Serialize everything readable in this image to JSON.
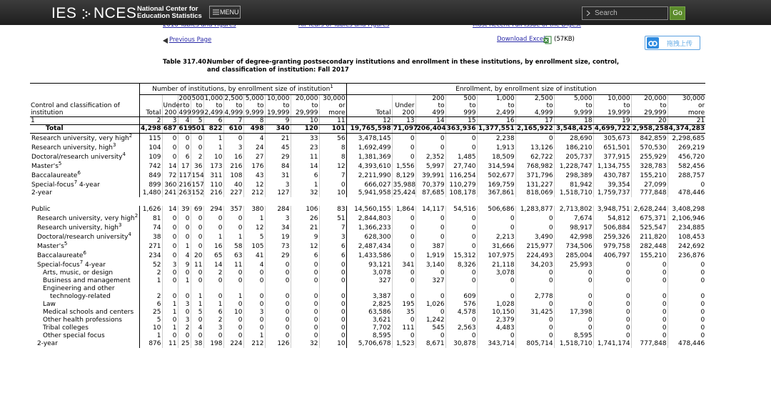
{
  "header": {
    "logo_left": "IES",
    "logo_right": "NCES",
    "org_line1": "National Center for",
    "org_line2": "Education Statistics",
    "menu": "MENU",
    "search": "Search",
    "go": "Go"
  },
  "nav": {
    "links": [
      "2016 Tables and Figures",
      "All Years of Tables and Figures",
      "Most Recent Full Issue of the Digest"
    ],
    "previous": "Previous Page",
    "download": "Download Excel",
    "size": "(57KB)",
    "upload": "拖拽上传"
  },
  "title": {
    "number": "Table 317.40.",
    "line1": "Number of degree-granting postsecondary institutions and enrollment in these institutions, by enrollment size, control,",
    "line2": "and classification of institution: Fall 2017"
  },
  "table": {
    "group_headers": [
      {
        "text": "Number of institutions, by enrollment size of institution",
        "note": "1"
      },
      {
        "text": "Enrollment, by enrollment size of institution"
      }
    ],
    "stub_header": "Control and classification of institution",
    "columns": [
      "Total",
      "Under 200",
      "200 to 499",
      "500 to 999",
      "1,000 to 2,499",
      "2,500 to 4,999",
      "5,000 to 9,999",
      "10,000 to 19,999",
      "20,000 to 29,999",
      "30,000 or more"
    ],
    "column_numbers": [
      "1",
      "2",
      "3",
      "4",
      "5",
      "6",
      "7",
      "8",
      "9",
      "10",
      "11",
      "12",
      "13",
      "14",
      "15",
      "16",
      "17",
      "18",
      "19",
      "20",
      "21"
    ],
    "sections": [
      {
        "label": "Total",
        "values": [
          "4,298",
          "687",
          "619",
          "501",
          "822",
          "610",
          "498",
          "340",
          "120",
          "101",
          "19,765,598",
          "71,097",
          "206,404",
          "363,936",
          "1,377,551",
          "2,165,922",
          "3,548,425",
          "4,699,722",
          "2,958,258",
          "4,374,283"
        ],
        "rows": [
          {
            "label": "Research university, very high",
            "note": "2",
            "values": [
              "115",
              "0",
              "0",
              "0",
              "1",
              "0",
              "4",
              "21",
              "33",
              "56",
              "3,478,145",
              "0",
              "0",
              "0",
              "2,238",
              "0",
              "28,690",
              "305,673",
              "842,859",
              "2,298,685"
            ]
          },
          {
            "label": "Research university, high",
            "note": "3",
            "values": [
              "104",
              "0",
              "0",
              "0",
              "1",
              "3",
              "24",
              "45",
              "23",
              "8",
              "1,692,499",
              "0",
              "0",
              "0",
              "1,913",
              "13,126",
              "186,210",
              "651,501",
              "570,530",
              "269,219"
            ]
          },
          {
            "label": "Doctoral/research university",
            "note": "4",
            "values": [
              "109",
              "0",
              "6",
              "2",
              "10",
              "16",
              "27",
              "29",
              "11",
              "8",
              "1,381,369",
              "0",
              "2,352",
              "1,485",
              "18,509",
              "62,722",
              "205,737",
              "377,915",
              "255,929",
              "456,720"
            ]
          },
          {
            "label": "Master's",
            "note": "5",
            "values": [
              "742",
              "14",
              "17",
              "36",
              "173",
              "216",
              "176",
              "84",
              "14",
              "12",
              "4,393,610",
              "1,556",
              "5,997",
              "27,740",
              "314,594",
              "768,982",
              "1,228,747",
              "1,134,755",
              "328,783",
              "582,456"
            ]
          },
          {
            "label": "Baccalaureate",
            "note": "6",
            "values": [
              "849",
              "72",
              "117",
              "154",
              "311",
              "108",
              "43",
              "31",
              "6",
              "7",
              "2,211,990",
              "8,129",
              "39,991",
              "116,254",
              "502,677",
              "371,796",
              "298,389",
              "430,787",
              "155,210",
              "288,757"
            ]
          },
          {
            "label": "Special-focus",
            "note": "7",
            "suffix": " 4-year",
            "values": [
              "899",
              "360",
              "216",
              "157",
              "110",
              "40",
              "12",
              "3",
              "1",
              "0",
              "666,027",
              "35,988",
              "70,379",
              "110,279",
              "169,759",
              "131,227",
              "81,942",
              "39,354",
              "27,099",
              "0"
            ]
          },
          {
            "label": "2-year",
            "values": [
              "1,480",
              "241",
              "263",
              "152",
              "216",
              "227",
              "212",
              "127",
              "32",
              "10",
              "5,941,958",
              "25,424",
              "87,685",
              "108,178",
              "367,861",
              "818,069",
              "1,518,710",
              "1,759,737",
              "777,848",
              "478,446"
            ]
          }
        ]
      },
      {
        "label": "Public",
        "values": [
          "1,626",
          "14",
          "39",
          "69",
          "294",
          "357",
          "380",
          "284",
          "106",
          "83",
          "14,560,155",
          "1,864",
          "14,117",
          "54,516",
          "506,686",
          "1,283,877",
          "2,713,802",
          "3,948,751",
          "2,628,244",
          "3,408,298"
        ],
        "rows": [
          {
            "label": "Research university, very high",
            "note": "2",
            "values": [
              "81",
              "0",
              "0",
              "0",
              "0",
              "0",
              "1",
              "3",
              "26",
              "51",
              "2,844,803",
              "0",
              "0",
              "0",
              "0",
              "0",
              "7,674",
              "54,812",
              "675,371",
              "2,106,946"
            ]
          },
          {
            "label": "Research university, high",
            "note": "3",
            "values": [
              "74",
              "0",
              "0",
              "0",
              "0",
              "0",
              "12",
              "34",
              "21",
              "7",
              "1,366,233",
              "0",
              "0",
              "0",
              "0",
              "0",
              "98,917",
              "506,884",
              "525,547",
              "234,885"
            ]
          },
          {
            "label": "Doctoral/research university",
            "note": "4",
            "values": [
              "38",
              "0",
              "0",
              "0",
              "1",
              "1",
              "5",
              "19",
              "9",
              "3",
              "628,300",
              "0",
              "0",
              "0",
              "2,213",
              "3,490",
              "42,998",
              "259,326",
              "211,820",
              "108,453"
            ]
          },
          {
            "label": "Master's",
            "note": "5",
            "values": [
              "271",
              "0",
              "1",
              "0",
              "16",
              "58",
              "105",
              "73",
              "12",
              "6",
              "2,487,434",
              "0",
              "387",
              "0",
              "31,666",
              "215,977",
              "734,506",
              "979,758",
              "282,448",
              "242,692"
            ]
          },
          {
            "label": "Baccalaureate",
            "note": "6",
            "values": [
              "234",
              "0",
              "4",
              "20",
              "65",
              "63",
              "41",
              "29",
              "6",
              "6",
              "1,433,586",
              "0",
              "1,919",
              "15,312",
              "107,975",
              "224,493",
              "285,004",
              "406,797",
              "155,210",
              "236,876"
            ]
          },
          {
            "label": "Special-focus",
            "note": "7",
            "suffix": " 4-year",
            "values": [
              "52",
              "3",
              "9",
              "11",
              "14",
              "11",
              "4",
              "0",
              "0",
              "0",
              "93,121",
              "341",
              "3,140",
              "8,326",
              "21,118",
              "34,203",
              "25,993",
              "0",
              "0",
              "0"
            ],
            "rows": [
              {
                "label": "Arts, music, or design",
                "values": [
                  "2",
                  "0",
                  "0",
                  "0",
                  "2",
                  "0",
                  "0",
                  "0",
                  "0",
                  "0",
                  "3,078",
                  "0",
                  "0",
                  "0",
                  "3,078",
                  "0",
                  "0",
                  "0",
                  "0",
                  "0"
                ]
              },
              {
                "label": "Business and management",
                "values": [
                  "1",
                  "0",
                  "1",
                  "0",
                  "0",
                  "0",
                  "0",
                  "0",
                  "0",
                  "0",
                  "327",
                  "0",
                  "327",
                  "0",
                  "0",
                  "0",
                  "0",
                  "0",
                  "0",
                  "0"
                ]
              },
              {
                "label": "Engineering and other technology-related",
                "values": [
                  "2",
                  "0",
                  "0",
                  "1",
                  "0",
                  "1",
                  "0",
                  "0",
                  "0",
                  "0",
                  "3,387",
                  "0",
                  "0",
                  "609",
                  "0",
                  "2,778",
                  "0",
                  "0",
                  "0",
                  "0"
                ]
              },
              {
                "label": "Law",
                "values": [
                  "6",
                  "1",
                  "3",
                  "1",
                  "1",
                  "0",
                  "0",
                  "0",
                  "0",
                  "0",
                  "2,825",
                  "195",
                  "1,026",
                  "576",
                  "1,028",
                  "0",
                  "0",
                  "0",
                  "0",
                  "0"
                ]
              },
              {
                "label": "Medical schools and centers",
                "values": [
                  "25",
                  "1",
                  "0",
                  "5",
                  "6",
                  "10",
                  "3",
                  "0",
                  "0",
                  "0",
                  "63,586",
                  "35",
                  "0",
                  "4,578",
                  "10,150",
                  "31,425",
                  "17,398",
                  "0",
                  "0",
                  "0"
                ]
              },
              {
                "label": "Other health professions",
                "values": [
                  "5",
                  "0",
                  "3",
                  "0",
                  "2",
                  "0",
                  "0",
                  "0",
                  "0",
                  "0",
                  "3,621",
                  "0",
                  "1,242",
                  "0",
                  "2,379",
                  "0",
                  "0",
                  "0",
                  "0",
                  "0"
                ]
              },
              {
                "label": "Tribal colleges",
                "values": [
                  "10",
                  "1",
                  "2",
                  "4",
                  "3",
                  "0",
                  "0",
                  "0",
                  "0",
                  "0",
                  "7,702",
                  "111",
                  "545",
                  "2,563",
                  "4,483",
                  "0",
                  "0",
                  "0",
                  "0",
                  "0"
                ]
              },
              {
                "label": "Other special focus",
                "values": [
                  "1",
                  "0",
                  "0",
                  "0",
                  "0",
                  "0",
                  "1",
                  "0",
                  "0",
                  "0",
                  "8,595",
                  "0",
                  "0",
                  "0",
                  "0",
                  "0",
                  "8,595",
                  "0",
                  "0",
                  "0"
                ]
              }
            ]
          },
          {
            "label": "2-year",
            "values": [
              "876",
              "11",
              "25",
              "38",
              "198",
              "224",
              "212",
              "126",
              "32",
              "10",
              "5,706,678",
              "1,523",
              "8,671",
              "30,878",
              "343,714",
              "805,714",
              "1,518,710",
              "1,741,174",
              "777,848",
              "478,446"
            ]
          }
        ]
      }
    ]
  }
}
